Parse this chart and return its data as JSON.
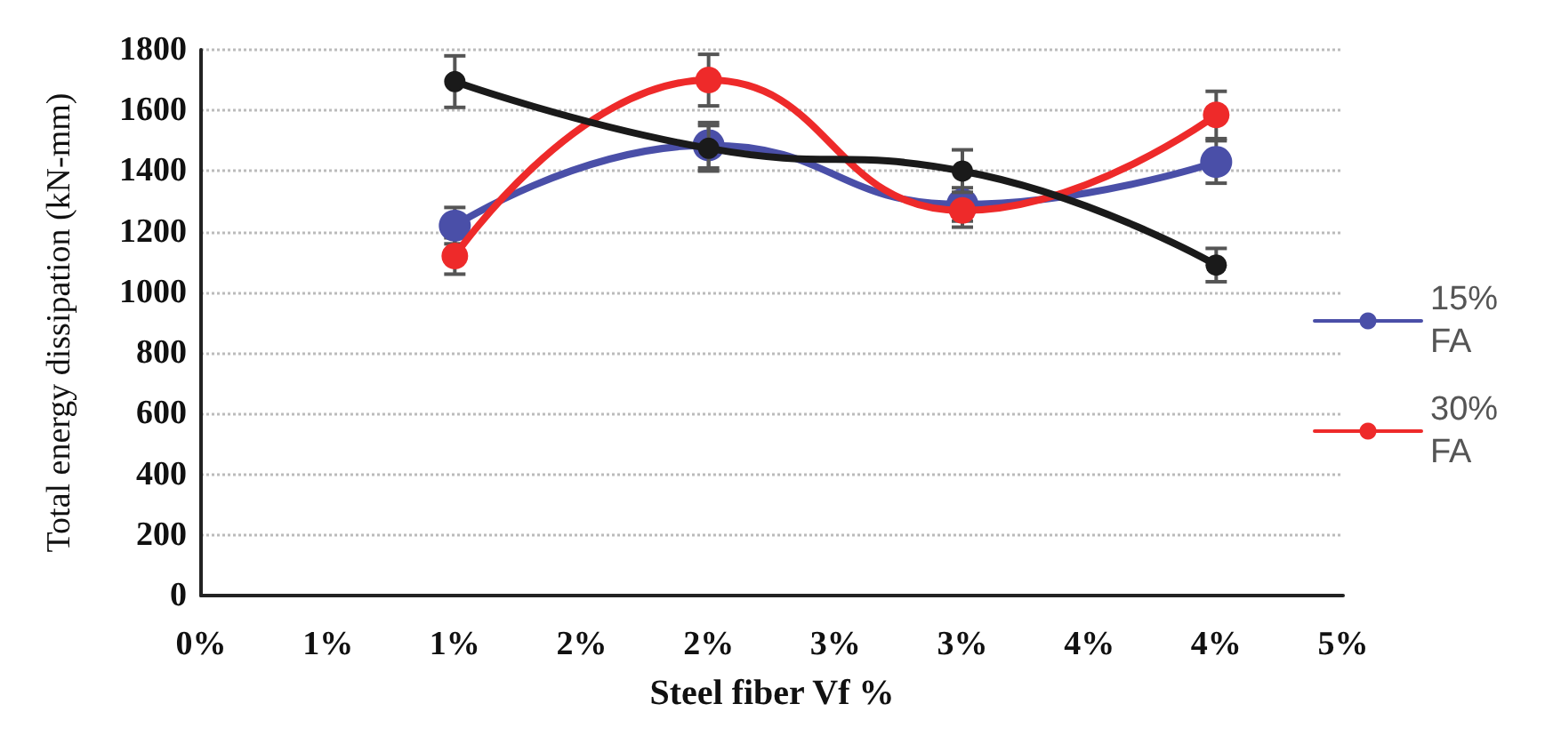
{
  "chart_data": {
    "type": "line",
    "xlabel": "Steel fiber Vf %",
    "ylabel": "Total energy dissipation (kN-mm)",
    "x": [
      1,
      2,
      3,
      4
    ],
    "xlim": [
      0,
      4.5
    ],
    "xticks": [
      {
        "value": 0,
        "label": "0%"
      },
      {
        "value": 0.5,
        "label": "1%"
      },
      {
        "value": 1,
        "label": "1%"
      },
      {
        "value": 1.5,
        "label": "2%"
      },
      {
        "value": 2,
        "label": "2%"
      },
      {
        "value": 2.5,
        "label": "3%"
      },
      {
        "value": 3,
        "label": "3%"
      },
      {
        "value": 3.5,
        "label": "4%"
      },
      {
        "value": 4,
        "label": "4%"
      },
      {
        "value": 4.5,
        "label": "5%"
      }
    ],
    "ylim": [
      0,
      1800
    ],
    "yticks": [
      0,
      200,
      400,
      600,
      800,
      1000,
      1200,
      1400,
      1600,
      1800
    ],
    "series": [
      {
        "name": "15% FA",
        "color": "#4a4fa8",
        "values": [
          1220,
          1485,
          1290,
          1430
        ],
        "errors": [
          60,
          75,
          55,
          70
        ]
      },
      {
        "name": "30% FA",
        "color": "#ee2a2a",
        "values": [
          1120,
          1700,
          1270,
          1585
        ],
        "errors": [
          60,
          85,
          55,
          78
        ]
      },
      {
        "color": "#1a1a1a",
        "values": [
          1695,
          1475,
          1400,
          1090
        ],
        "errors": [
          85,
          75,
          70,
          55
        ]
      }
    ],
    "grid": "y",
    "legend": "right",
    "marker": "circle",
    "line_style": "solid"
  }
}
